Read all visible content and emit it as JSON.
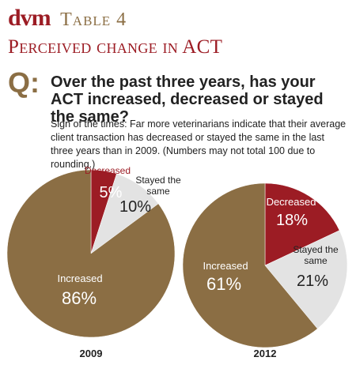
{
  "header": {
    "brand": "dvm",
    "table_label": "Table 4",
    "title": "Perceived change in ACT",
    "q_mark": "Q:",
    "question": "Over the past three years, has your ACT increased, decreased or stayed the same?",
    "subtitle": "Sign of the times: Far more veterinarians indicate that their average client transaction has decreased or stayed the same in the last three years than in 2009. (Numbers may not total 100 due to rounding.)"
  },
  "colors": {
    "increased": "#8b6e44",
    "decreased": "#9c1c24",
    "same": "#e3e3e3",
    "brand_red": "#9c1c24",
    "brand_gold": "#8b6e44"
  },
  "chart_data": [
    {
      "type": "pie",
      "title": "2009",
      "slices": [
        {
          "label": "Decreased",
          "value": 5,
          "value_label": "5%"
        },
        {
          "label": "Stayed the same",
          "value": 10,
          "value_label": "10%"
        },
        {
          "label": "Increased",
          "value": 86,
          "value_label": "86%"
        }
      ]
    },
    {
      "type": "pie",
      "title": "2012",
      "slices": [
        {
          "label": "Decreased",
          "value": 18,
          "value_label": "18%"
        },
        {
          "label": "Stayed the same",
          "value": 21,
          "value_label": "21%"
        },
        {
          "label": "Increased",
          "value": 61,
          "value_label": "61%"
        }
      ]
    }
  ]
}
